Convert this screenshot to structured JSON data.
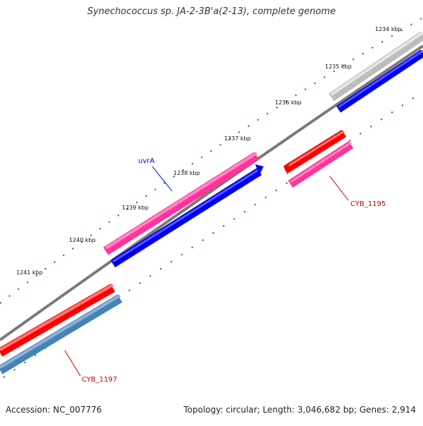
{
  "title": "Synechococcus sp. JA-2-3B'a(2-13), complete genome",
  "footer": {
    "accession": "Accession: NC_007776",
    "summary": "Topology: circular; Length: 3,046,682 bp; Genes: 2,914"
  },
  "ticks": [
    "1234 kbp",
    "1235 kbp",
    "1236 kbp",
    "1237 kbp",
    "1238 kbp",
    "1239 kbp",
    "1240 kbp",
    "1241 kbp"
  ],
  "gene_labels": {
    "uvrA": "uvrA",
    "cyb1195": "CYB_1195",
    "cyb1197": "CYB_1197"
  },
  "colors": {
    "backbone": "#7a7a7a",
    "tick": "#1a7a1a",
    "red": "#ff0000",
    "pink": "#ff3399",
    "blue": "#0000ee",
    "steelblue": "#4682b4",
    "gray": "#bdbdbd",
    "label_blue": "#0000cc",
    "label_red": "#cc0000"
  }
}
